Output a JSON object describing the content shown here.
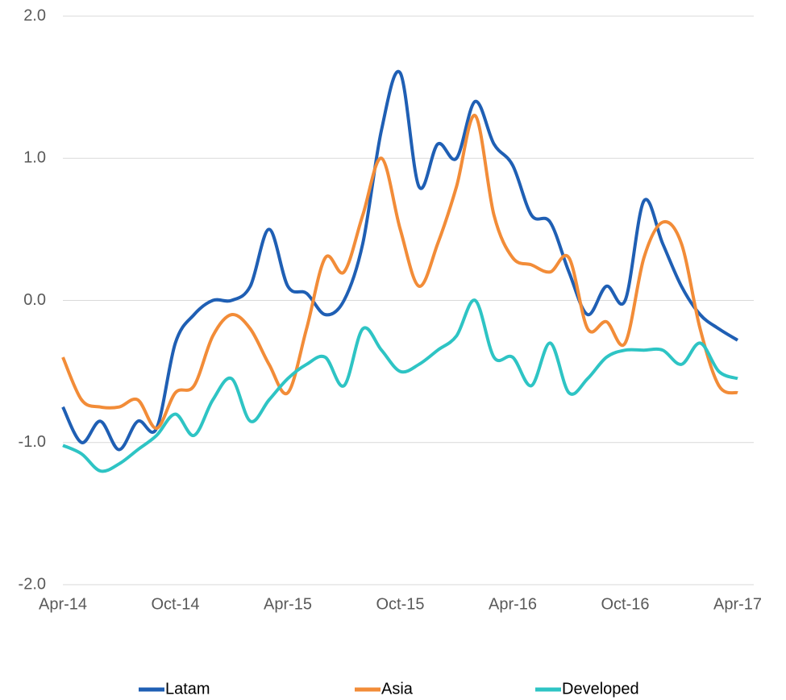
{
  "chart_data": {
    "type": "line",
    "x": [
      "2014-04",
      "2014-05",
      "2014-06",
      "2014-07",
      "2014-08",
      "2014-09",
      "2014-10",
      "2014-11",
      "2014-12",
      "2015-01",
      "2015-02",
      "2015-03",
      "2015-04",
      "2015-05",
      "2015-06",
      "2015-07",
      "2015-08",
      "2015-09",
      "2015-10",
      "2015-11",
      "2015-12",
      "2016-01",
      "2016-02",
      "2016-03",
      "2016-04",
      "2016-05",
      "2016-06",
      "2016-07",
      "2016-08",
      "2016-09",
      "2016-10",
      "2016-11",
      "2016-12",
      "2017-01",
      "2017-02",
      "2017-03",
      "2017-04"
    ],
    "series": [
      {
        "name": "Latam",
        "color": "#1f5fb4",
        "values": [
          -0.75,
          -1.0,
          -0.85,
          -1.05,
          -0.85,
          -0.9,
          -0.3,
          -0.1,
          0.0,
          0.0,
          0.1,
          0.5,
          0.1,
          0.05,
          -0.1,
          0.0,
          0.4,
          1.2,
          1.6,
          0.8,
          1.1,
          1.0,
          1.4,
          1.1,
          0.95,
          0.6,
          0.55,
          0.2,
          -0.1,
          0.1,
          0.0,
          0.7,
          0.4,
          0.1,
          -0.1,
          -0.2,
          -0.28
        ]
      },
      {
        "name": "Asia",
        "color": "#f28c38",
        "values": [
          -0.4,
          -0.7,
          -0.75,
          -0.75,
          -0.7,
          -0.9,
          -0.65,
          -0.6,
          -0.25,
          -0.1,
          -0.2,
          -0.45,
          -0.65,
          -0.2,
          0.3,
          0.2,
          0.6,
          1.0,
          0.5,
          0.1,
          0.4,
          0.8,
          1.3,
          0.6,
          0.3,
          0.25,
          0.2,
          0.3,
          -0.2,
          -0.15,
          -0.3,
          0.3,
          0.55,
          0.4,
          -0.2,
          -0.6,
          -0.65
        ]
      },
      {
        "name": "Developed",
        "color": "#2ec4c4",
        "values": [
          -1.02,
          -1.08,
          -1.2,
          -1.15,
          -1.05,
          -0.95,
          -0.8,
          -0.95,
          -0.7,
          -0.55,
          -0.85,
          -0.7,
          -0.55,
          -0.45,
          -0.4,
          -0.6,
          -0.2,
          -0.35,
          -0.5,
          -0.45,
          -0.35,
          -0.25,
          0.0,
          -0.4,
          -0.4,
          -0.6,
          -0.3,
          -0.65,
          -0.55,
          -0.4,
          -0.35,
          -0.35,
          -0.35,
          -0.45,
          -0.3,
          -0.5,
          -0.55
        ]
      }
    ],
    "xlim": [
      "2014-04",
      "2017-04"
    ],
    "xticks": [
      {
        "value": "2014-04",
        "label": "Apr-14"
      },
      {
        "value": "2014-10",
        "label": "Oct-14"
      },
      {
        "value": "2015-04",
        "label": "Apr-15"
      },
      {
        "value": "2015-10",
        "label": "Oct-15"
      },
      {
        "value": "2016-04",
        "label": "Apr-16"
      },
      {
        "value": "2016-10",
        "label": "Oct-16"
      },
      {
        "value": "2017-04",
        "label": "Apr-17"
      }
    ],
    "ylim": [
      -2,
      2
    ],
    "yticks": [
      {
        "value": -2,
        "label": "-2.0"
      },
      {
        "value": -1,
        "label": "-1.0"
      },
      {
        "value": 0,
        "label": "0.0"
      },
      {
        "value": 1,
        "label": "1.0"
      },
      {
        "value": 2,
        "label": "2.0"
      }
    ],
    "grid": true,
    "legend": "bottom"
  }
}
